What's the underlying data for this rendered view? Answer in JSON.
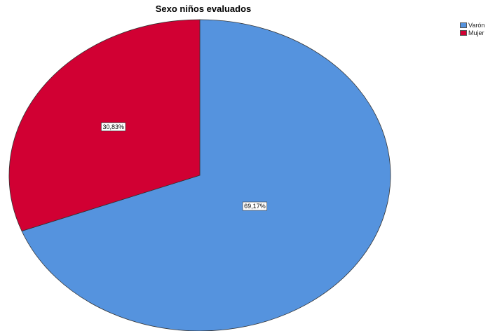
{
  "chart_data": {
    "type": "pie",
    "title": "Sexo niños evaluados",
    "legend_position": "top-right",
    "slices": [
      {
        "name": "Varón",
        "value": 69.17,
        "label": "69,17%",
        "color": "#5593DE"
      },
      {
        "name": "Mujer",
        "value": 30.83,
        "label": "30,83%",
        "color": "#D10033"
      }
    ]
  }
}
